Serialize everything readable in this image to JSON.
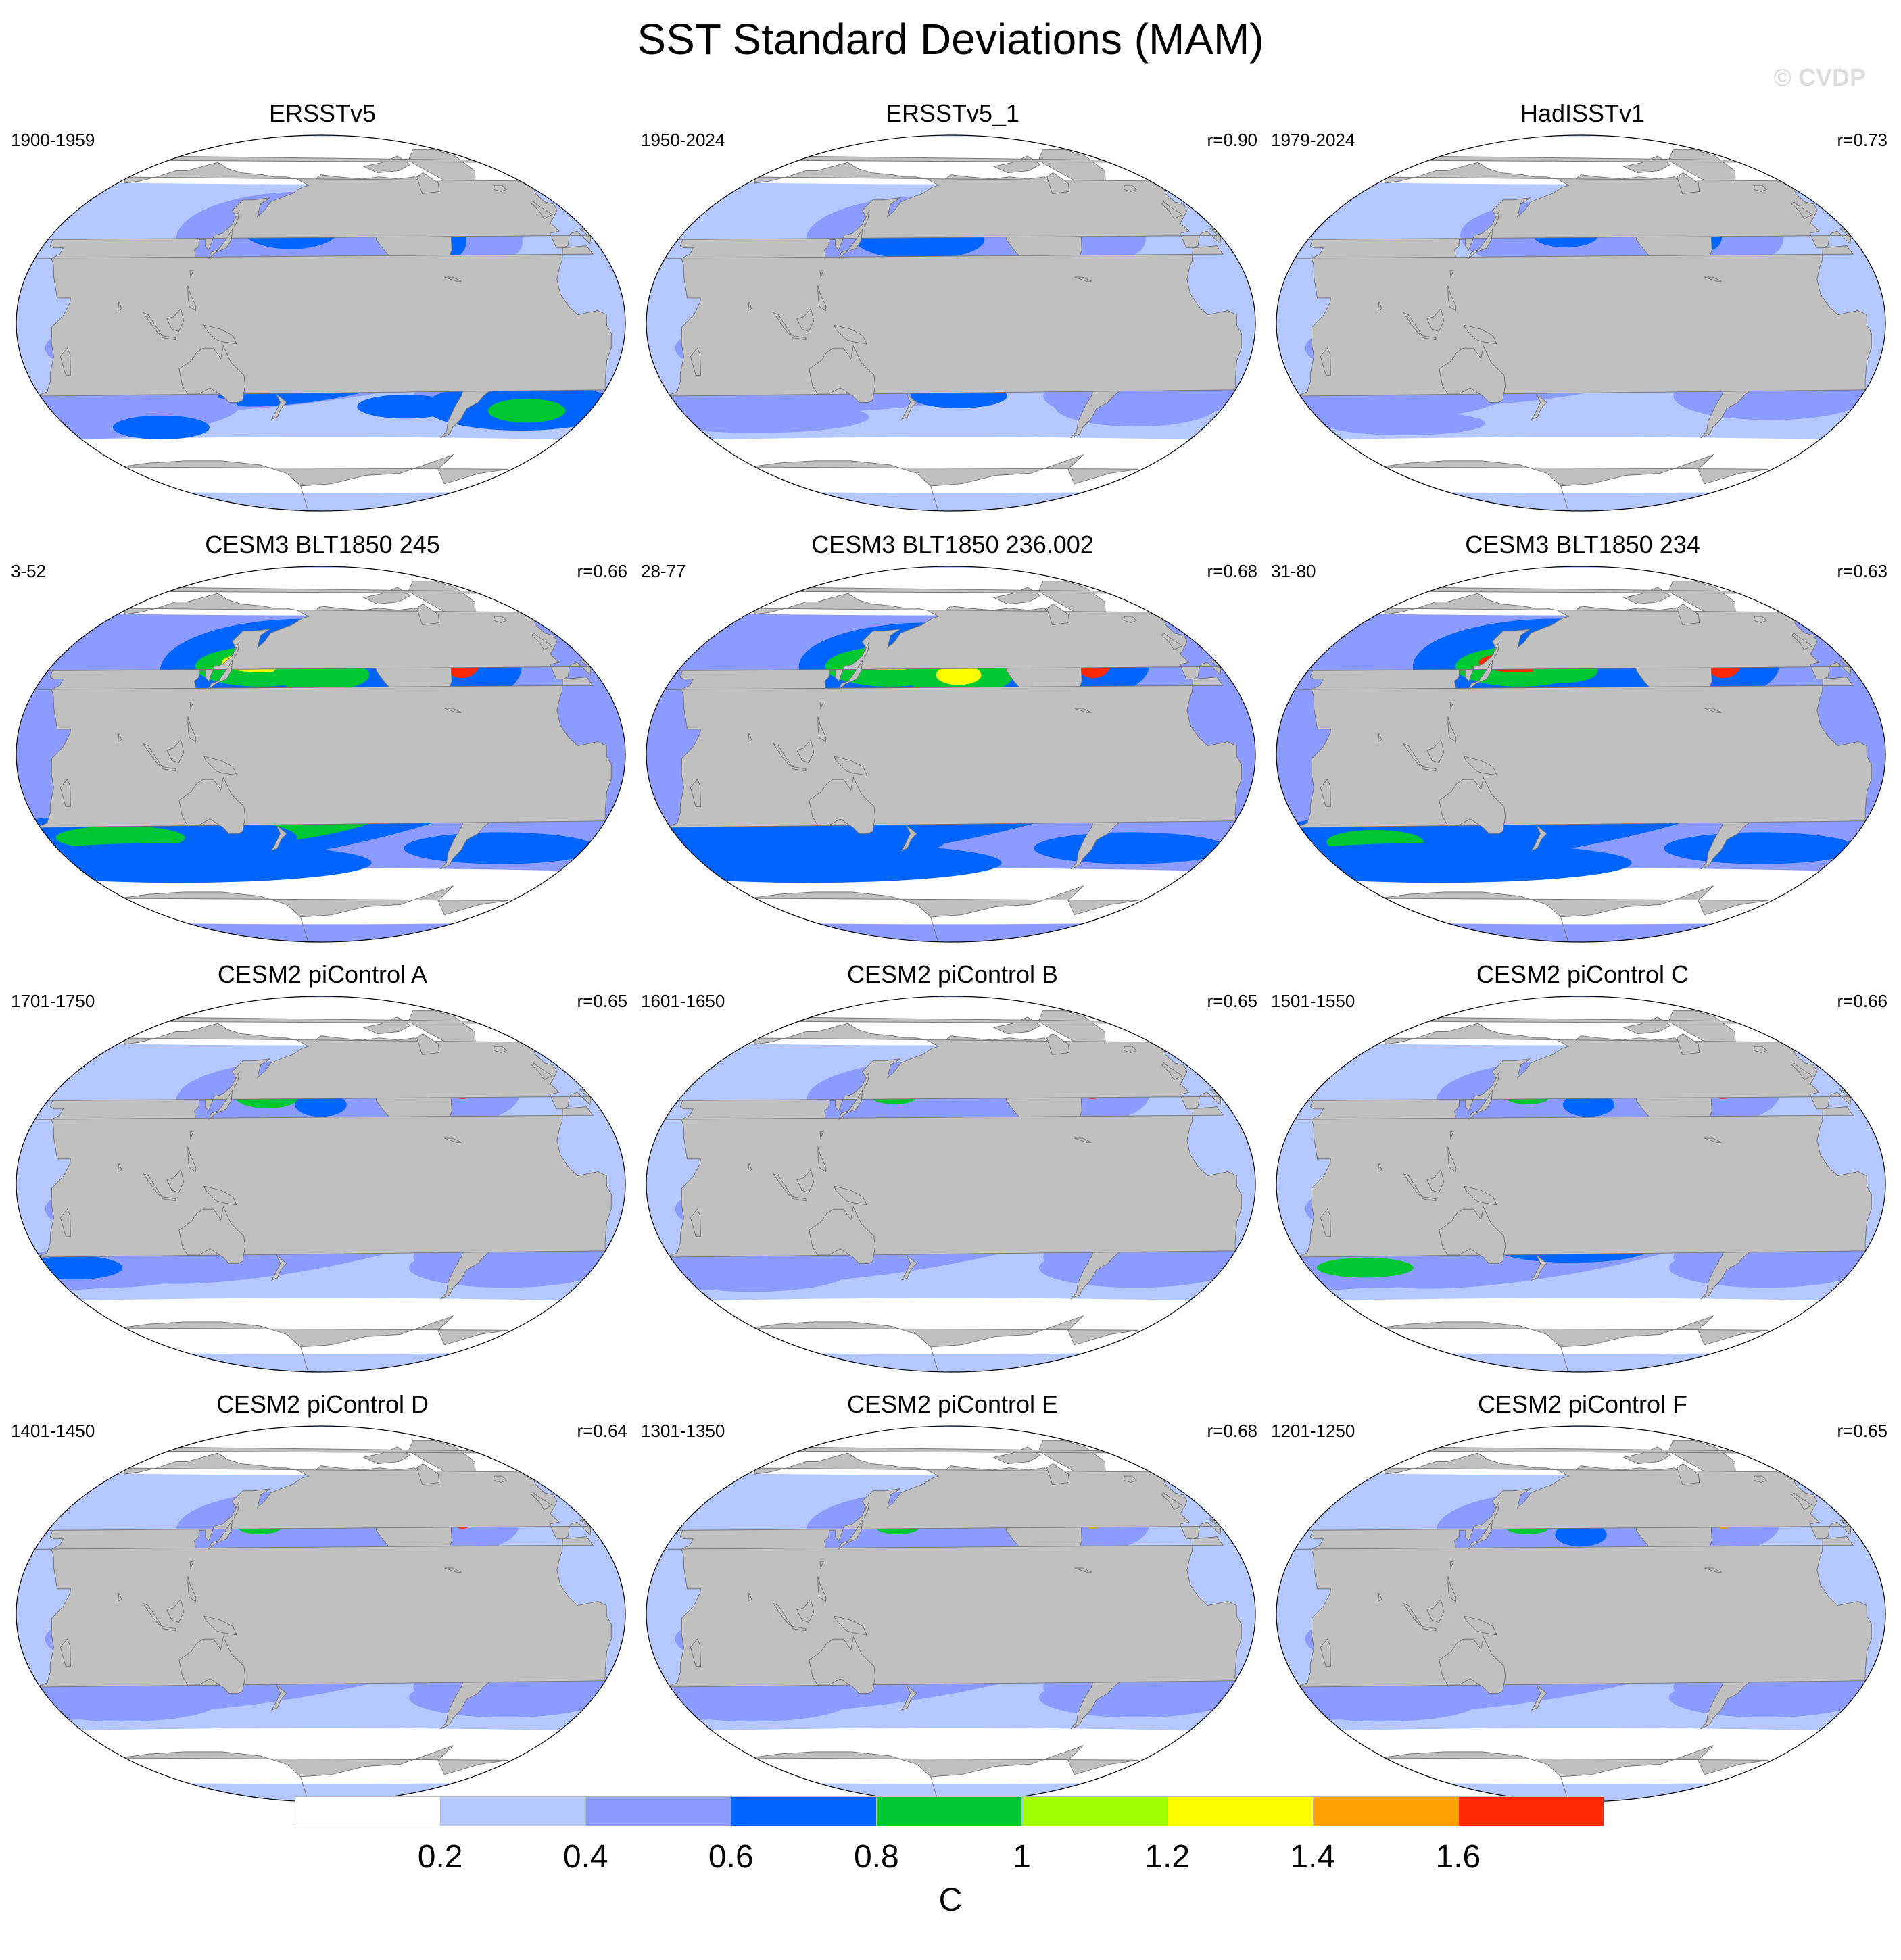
{
  "title": "SST Standard Deviations (MAM)",
  "watermark": "© CVDP",
  "projection": "Robinson (Pacific-centered)",
  "land_color": "#c0c0c0",
  "panels": [
    {
      "title": "ERSSTv5",
      "years": "1900-1959",
      "r": "",
      "profile": "obs"
    },
    {
      "title": "ERSSTv5_1",
      "years": "1950-2024",
      "r": "r=0.90",
      "profile": "obs2"
    },
    {
      "title": "HadISSTv1",
      "years": "1979-2024",
      "r": "r=0.73",
      "profile": "had"
    },
    {
      "title": "CESM3 BLT1850 245",
      "years": "3-52",
      "r": "r=0.66",
      "profile": "cesm3"
    },
    {
      "title": "CESM3 BLT1850 236.002",
      "years": "28-77",
      "r": "r=0.68",
      "profile": "cesm3b"
    },
    {
      "title": "CESM3 BLT1850 234",
      "years": "31-80",
      "r": "r=0.63",
      "profile": "cesm3c"
    },
    {
      "title": "CESM2 piControl A",
      "years": "1701-1750",
      "r": "r=0.65",
      "profile": "cesm2"
    },
    {
      "title": "CESM2 piControl B",
      "years": "1601-1650",
      "r": "r=0.65",
      "profile": "cesm2b"
    },
    {
      "title": "CESM2 piControl C",
      "years": "1501-1550",
      "r": "r=0.66",
      "profile": "cesm2c"
    },
    {
      "title": "CESM2 piControl D",
      "years": "1401-1450",
      "r": "r=0.64",
      "profile": "cesm2d"
    },
    {
      "title": "CESM2 piControl E",
      "years": "1301-1350",
      "r": "r=0.68",
      "profile": "cesm2e"
    },
    {
      "title": "CESM2 piControl F",
      "years": "1201-1250",
      "r": "r=0.65",
      "profile": "cesm2f"
    }
  ],
  "colorbar": {
    "units": "C",
    "labels": [
      "0.2",
      "0.4",
      "0.6",
      "0.8",
      "1",
      "1.2",
      "1.4",
      "1.6"
    ],
    "colors": [
      "#ffffff",
      "#b4c8ff",
      "#8c9bff",
      "#0064ff",
      "#00c832",
      "#a0ff00",
      "#ffff00",
      "#ffa000",
      "#ff2800"
    ]
  }
}
